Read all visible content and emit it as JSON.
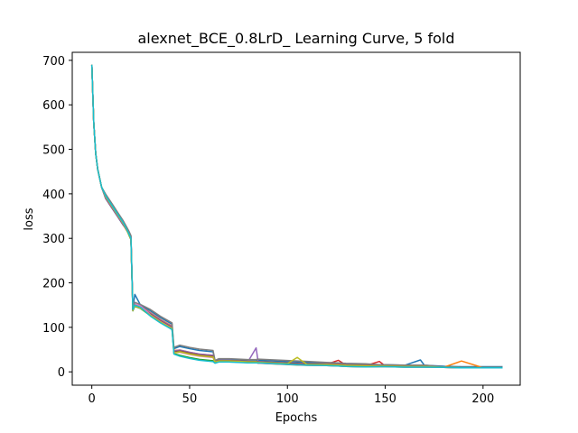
{
  "chart_data": {
    "type": "line",
    "title": "alexnet_BCE_0.8LrD_ Learning Curve, 5 fold",
    "xlabel": "Epochs",
    "ylabel": "loss",
    "xlim": [
      -10,
      219
    ],
    "ylim": [
      -30,
      718
    ],
    "xticks": [
      0,
      50,
      100,
      150,
      200
    ],
    "yticks": [
      0,
      100,
      200,
      300,
      400,
      500,
      600,
      700
    ],
    "grid": false,
    "legend": "none",
    "colors": [
      "#1f77b4",
      "#ff7f0e",
      "#2ca02c",
      "#d62728",
      "#9467bd",
      "#8c564b",
      "#e377c2",
      "#7f7f7f",
      "#bcbd22",
      "#17becf"
    ],
    "series_template": {
      "x": [
        0,
        1,
        2,
        3,
        5,
        7,
        10,
        13,
        16,
        19,
        20,
        21,
        22,
        25,
        30,
        35,
        41,
        42,
        45,
        50,
        55,
        62,
        63,
        65,
        70,
        80,
        84,
        85,
        90,
        100,
        105,
        110,
        120,
        126,
        130,
        140,
        147,
        150,
        160,
        168,
        170,
        180,
        189,
        200,
        210
      ],
      "y": [
        690,
        560,
        490,
        455,
        415,
        395,
        375,
        355,
        335,
        310,
        300,
        140,
        150,
        145,
        130,
        115,
        100,
        45,
        45,
        40,
        36,
        33,
        22,
        24,
        24,
        22,
        22,
        21,
        20,
        18,
        17,
        16,
        15,
        14,
        13,
        12,
        12,
        12,
        11,
        11,
        11,
        10,
        9,
        9,
        9
      ]
    },
    "series": [
      {
        "color": "#1f77b4",
        "offsets": [
          0,
          -5,
          4,
          7,
          12,
          18,
          20,
          19,
          15,
          10
        ],
        "spikes": {
          "22": 20,
          "168": 12
        }
      },
      {
        "color": "#ff7f0e",
        "offsets": [
          0,
          -2,
          2,
          3,
          4,
          5,
          5,
          6,
          4,
          1
        ],
        "spikes": {
          "189": 15
        }
      },
      {
        "color": "#2ca02c",
        "offsets": [
          0,
          4,
          -3,
          -4,
          -8,
          -5,
          -6,
          -4,
          -2,
          0
        ],
        "spikes": {}
      },
      {
        "color": "#d62728",
        "offsets": [
          0,
          -4,
          -1,
          0,
          1,
          5,
          6,
          8,
          5,
          0
        ],
        "spikes": {
          "126": 10,
          "147": 10
        }
      },
      {
        "color": "#9467bd",
        "offsets": [
          0,
          -3,
          1,
          2,
          4,
          8,
          8,
          12,
          9,
          3
        ],
        "spikes": {
          "84": 30
        }
      },
      {
        "color": "#8c564b",
        "offsets": [
          0,
          2,
          -2,
          0,
          2,
          6,
          7,
          10,
          6,
          2
        ],
        "spikes": {}
      },
      {
        "color": "#e377c2",
        "offsets": [
          0,
          0,
          3,
          -2,
          -1,
          -4,
          -5,
          -3,
          -2,
          0
        ],
        "spikes": {}
      },
      {
        "color": "#7f7f7f",
        "offsets": [
          0,
          5,
          6,
          10,
          15,
          22,
          30,
          24,
          16,
          4
        ],
        "spikes": {}
      },
      {
        "color": "#bcbd22",
        "offsets": [
          0,
          -1,
          -2,
          -3,
          0,
          2,
          2,
          6,
          3,
          1
        ],
        "spikes": {
          "105": 15
        }
      },
      {
        "color": "#17becf",
        "offsets": [
          0,
          1,
          0,
          -5,
          -10,
          -8,
          -4,
          -3,
          -2,
          0
        ],
        "spikes": {}
      }
    ]
  }
}
